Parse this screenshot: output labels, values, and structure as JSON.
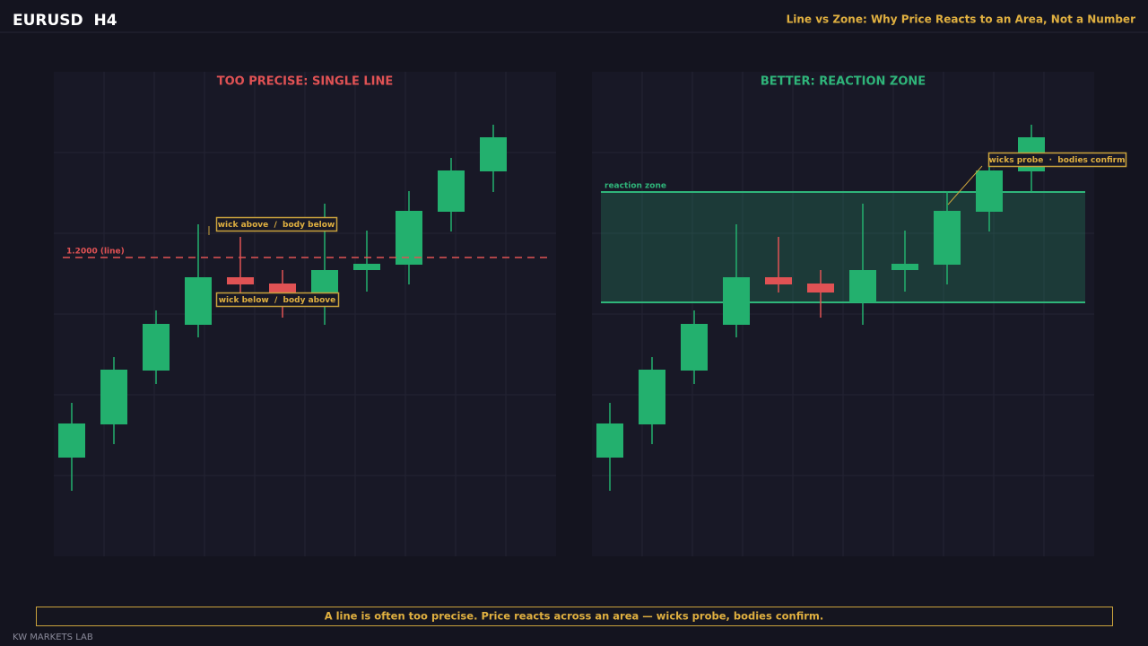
{
  "header": {
    "symbol": "EURUSD  H4",
    "title": "Line vs Zone: Why Price Reacts to an Area, Not a Number"
  },
  "chart_data": [
    {
      "type": "candlestick",
      "title": "TOO PRECISE: SINGLE LINE",
      "open": [
        1.18885,
        1.1907,
        1.1937,
        1.19625,
        1.1989,
        1.19855,
        1.1975,
        1.1993,
        1.1996,
        1.20255,
        1.2048
      ],
      "high": [
        1.1919,
        1.19445,
        1.19705,
        1.20185,
        1.20115,
        1.1993,
        1.203,
        1.2015,
        1.2037,
        1.20555,
        1.2074
      ],
      "low": [
        1.187,
        1.1896,
        1.19295,
        1.19555,
        1.19805,
        1.19665,
        1.19625,
        1.1981,
        1.1985,
        1.20145,
        1.20365
      ],
      "close": [
        1.19075,
        1.19375,
        1.1963,
        1.1989,
        1.1985,
        1.19805,
        1.1993,
        1.19965,
        1.2026,
        1.20485,
        1.2067
      ],
      "ylim": [
        1.18335,
        1.21035
      ],
      "yticks": [
        1.18785,
        1.19235,
        1.19685,
        1.20135,
        1.20585
      ],
      "up_color": "#23b06e",
      "down_color": "#e05254",
      "level": {
        "value": 1.2,
        "label": "1.2000 (line)",
        "color": "#e05254"
      },
      "annotations": [
        "wick above  /  body below",
        "wick below  /  body above"
      ]
    },
    {
      "type": "candlestick",
      "title": "BETTER: REACTION ZONE",
      "open": [
        1.18885,
        1.1907,
        1.1937,
        1.19625,
        1.1989,
        1.19855,
        1.1975,
        1.1993,
        1.1996,
        1.20255,
        1.2048
      ],
      "high": [
        1.1919,
        1.19445,
        1.19705,
        1.20185,
        1.20115,
        1.1993,
        1.203,
        1.2015,
        1.2037,
        1.20555,
        1.2074
      ],
      "low": [
        1.187,
        1.1896,
        1.19295,
        1.19555,
        1.19805,
        1.19665,
        1.19625,
        1.1981,
        1.1985,
        1.20145,
        1.20365
      ],
      "close": [
        1.19075,
        1.19375,
        1.1963,
        1.1989,
        1.1985,
        1.19805,
        1.1993,
        1.19965,
        1.2026,
        1.20485,
        1.2067
      ],
      "ylim": [
        1.18335,
        1.21035
      ],
      "yticks": [
        1.18785,
        1.19235,
        1.19685,
        1.20135,
        1.20585
      ],
      "up_color": "#23b06e",
      "down_color": "#e05254",
      "zone": {
        "top": 1.20365,
        "bottom": 1.1975,
        "label": "reaction zone",
        "color": "#2fb57a"
      },
      "annotations": [
        "wicks probe  ·  bodies confirm"
      ]
    }
  ],
  "footer": {
    "caption": "A line is often too precise. Price reacts across an area — wicks probe, bodies confirm.",
    "brand": "KW MARKETS LAB"
  }
}
